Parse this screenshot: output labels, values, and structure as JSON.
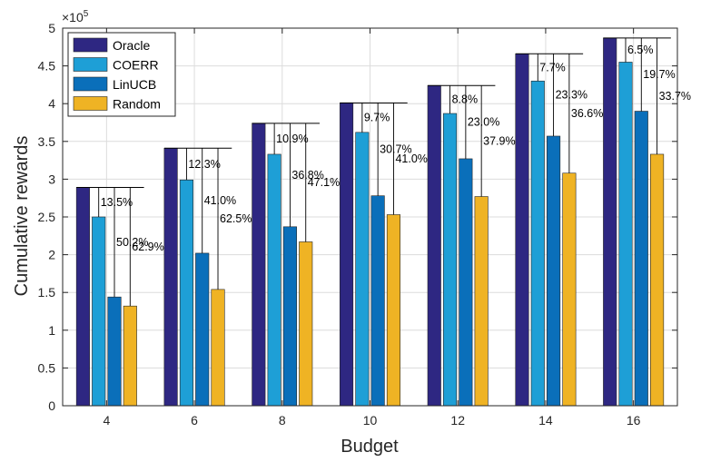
{
  "chart_data": {
    "type": "bar",
    "xlabel": "Budget",
    "ylabel": "Cumulative rewards",
    "ylim": [
      0,
      5
    ],
    "yticks": [
      0,
      0.5,
      1,
      1.5,
      2,
      2.5,
      3,
      3.5,
      4,
      4.5,
      5
    ],
    "ytick_labels": [
      "0",
      "0.5",
      "1",
      "1.5",
      "2",
      "2.5",
      "3",
      "3.5",
      "4",
      "4.5",
      "5"
    ],
    "y_multiplier": "×10",
    "y_exponent": "5",
    "grid": true,
    "legend_position": "top-left",
    "categories": [
      "4",
      "6",
      "8",
      "10",
      "12",
      "14",
      "16"
    ],
    "series": [
      {
        "name": "Oracle",
        "color": "#2e2782",
        "values": [
          2.89,
          3.41,
          3.74,
          4.01,
          4.24,
          4.66,
          4.87
        ]
      },
      {
        "name": "COERR",
        "color": "#1e9fd6",
        "values": [
          2.5,
          2.99,
          3.33,
          3.62,
          3.87,
          4.3,
          4.55
        ]
      },
      {
        "name": "LinUCB",
        "color": "#0a6fba",
        "values": [
          1.44,
          2.02,
          2.37,
          2.78,
          3.27,
          3.57,
          3.9
        ]
      },
      {
        "name": "Random",
        "color": "#efb324",
        "values": [
          1.32,
          1.54,
          2.17,
          2.53,
          2.77,
          3.08,
          3.33
        ]
      }
    ],
    "gap_labels": [
      [
        "13.5%",
        "50.2%",
        "62.9%"
      ],
      [
        "12.3%",
        "41.0%",
        "62.5%"
      ],
      [
        "10.9%",
        "36.8%",
        "47.1%"
      ],
      [
        "9.7%",
        "30.7%",
        "41.0%"
      ],
      [
        "8.8%",
        "23.0%",
        "37.9%"
      ],
      [
        "7.7%",
        "23.3%",
        "36.6%"
      ],
      [
        "6.5%",
        "19.7%",
        "33.7%"
      ]
    ]
  }
}
